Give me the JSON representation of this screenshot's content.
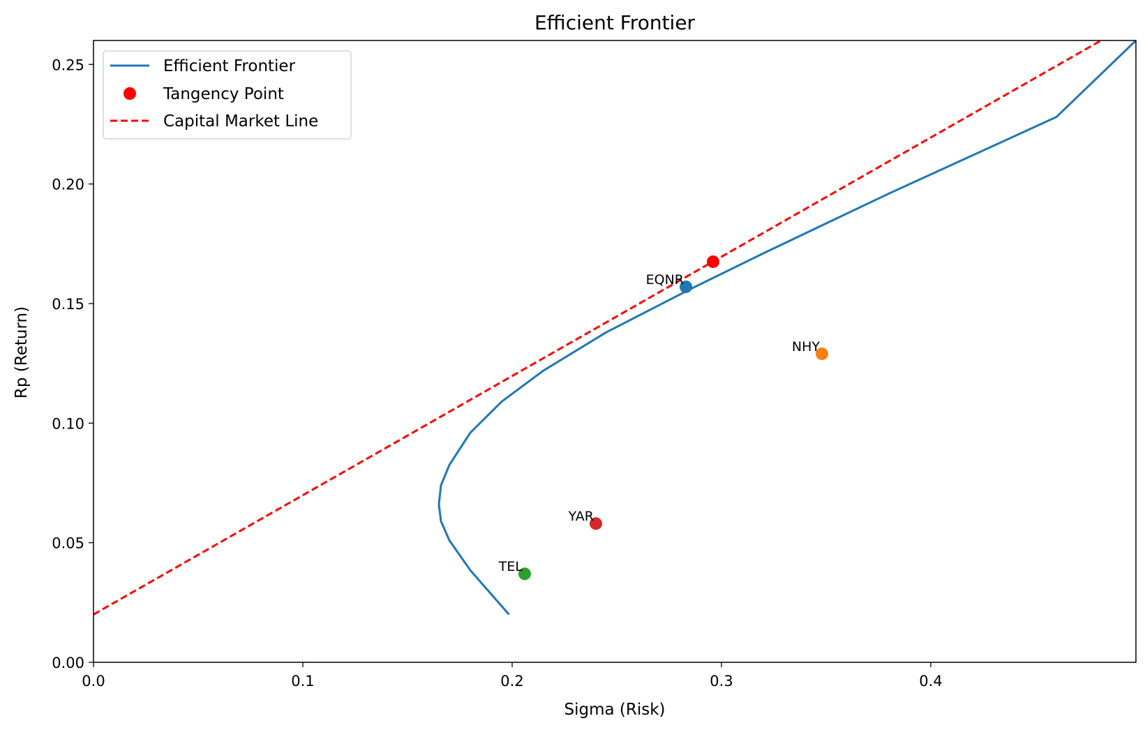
{
  "chart_data": {
    "type": "line",
    "title": "Efficient Frontier",
    "xlabel": "Sigma (Risk)",
    "ylabel": "Rp (Return)",
    "xlim": [
      0.0,
      0.498
    ],
    "ylim": [
      0.0,
      0.26
    ],
    "xticks": [
      {
        "value": 0.0,
        "label": "0.0"
      },
      {
        "value": 0.1,
        "label": "0.1"
      },
      {
        "value": 0.2,
        "label": "0.2"
      },
      {
        "value": 0.3,
        "label": "0.3"
      },
      {
        "value": 0.4,
        "label": "0.4"
      }
    ],
    "yticks": [
      {
        "value": 0.0,
        "label": "0.00"
      },
      {
        "value": 0.05,
        "label": "0.05"
      },
      {
        "value": 0.1,
        "label": "0.10"
      },
      {
        "value": 0.15,
        "label": "0.15"
      },
      {
        "value": 0.2,
        "label": "0.20"
      },
      {
        "value": 0.25,
        "label": "0.25"
      }
    ],
    "grid": false,
    "legend_position": "upper-left",
    "series": [
      {
        "name": "Efficient Frontier",
        "kind": "line",
        "color": "#1f77b4",
        "x": [
          0.1985,
          0.19,
          0.18,
          0.17,
          0.166,
          0.165,
          0.166,
          0.17,
          0.18,
          0.195,
          0.215,
          0.245,
          0.285,
          0.32,
          0.35,
          0.38,
          0.42,
          0.46,
          0.498
        ],
        "y": [
          0.02,
          0.0285,
          0.0385,
          0.051,
          0.059,
          0.066,
          0.074,
          0.0825,
          0.096,
          0.109,
          0.122,
          0.138,
          0.156,
          0.171,
          0.1835,
          0.196,
          0.212,
          0.228,
          0.26
        ]
      },
      {
        "name": "Tangency Point",
        "kind": "point",
        "color": "#ff0000",
        "x": [
          0.296
        ],
        "y": [
          0.1675
        ]
      },
      {
        "name": "Capital Market Line",
        "kind": "dashed-line",
        "color": "#ff0000",
        "x": [
          0.0,
          0.498
        ],
        "y": [
          0.02,
          0.2683
        ]
      }
    ],
    "assets": [
      {
        "label": "EQNR",
        "x": 0.283,
        "y": 0.157,
        "color": "#1f77b4"
      },
      {
        "label": "NHY",
        "x": 0.348,
        "y": 0.129,
        "color": "#ff7f0e"
      },
      {
        "label": "TEL",
        "x": 0.206,
        "y": 0.037,
        "color": "#2ca02c"
      },
      {
        "label": "YAR",
        "x": 0.24,
        "y": 0.058,
        "color": "#d62728"
      }
    ]
  }
}
